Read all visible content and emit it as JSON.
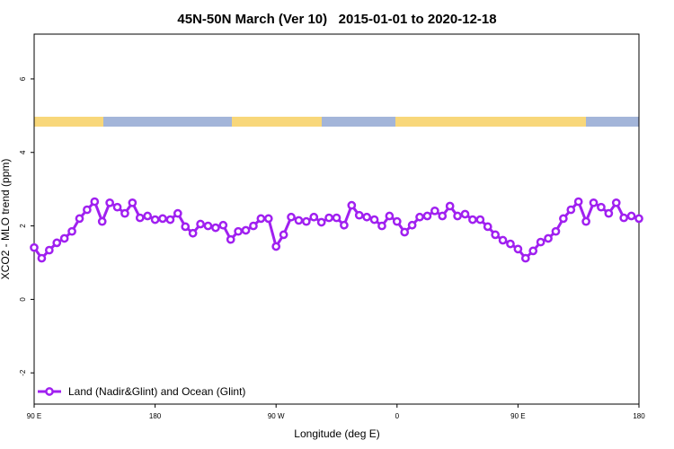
{
  "chart_data": {
    "type": "line",
    "title": "45N-50N March (Ver 10)   2015-01-01 to 2020-12-18",
    "xlabel": "Longitude (deg E)",
    "ylabel": "XCO2 - MLO trend (ppm)",
    "x": [
      90,
      95.625,
      101.25,
      106.875,
      112.5,
      118.125,
      123.75,
      129.375,
      135,
      140.625,
      146.25,
      151.875,
      157.5,
      163.125,
      168.75,
      174.375,
      180,
      185.625,
      191.25,
      196.875,
      202.5,
      208.125,
      213.75,
      219.375,
      225,
      230.625,
      236.25,
      241.875,
      247.5,
      253.125,
      258.75,
      264.375,
      270,
      275.625,
      281.25,
      286.875,
      292.5,
      298.125,
      303.75,
      309.375,
      315,
      320.625,
      326.25,
      331.875,
      337.5,
      343.125,
      348.75,
      354.375,
      360,
      365.625,
      371.25,
      376.875,
      382.5,
      388.125,
      393.75,
      399.375,
      405,
      410.625,
      416.25,
      421.875,
      427.5,
      433.125,
      438.75,
      444.375,
      450,
      455.625,
      461.25,
      466.875,
      472.5,
      478.125,
      483.75,
      489.375,
      495,
      500.625,
      506.25,
      511.875,
      517.5,
      523.125,
      528.75,
      534.375,
      540
    ],
    "series": [
      {
        "name": "Land (Nadir&Glint) and Ocean (Glint)",
        "color": "#a020f0",
        "values": [
          1.41,
          1.12,
          1.34,
          1.54,
          1.66,
          1.85,
          2.2,
          2.44,
          2.66,
          2.12,
          2.63,
          2.51,
          2.34,
          2.63,
          2.22,
          2.27,
          2.17,
          2.2,
          2.17,
          2.34,
          1.98,
          1.8,
          2.05,
          2.0,
          1.95,
          2.02,
          1.63,
          1.85,
          1.88,
          2.0,
          2.2,
          2.2,
          1.44,
          1.76,
          2.24,
          2.15,
          2.12,
          2.24,
          2.1,
          2.22,
          2.22,
          2.02,
          2.56,
          2.29,
          2.24,
          2.17,
          2.0,
          2.27,
          2.12,
          1.83,
          2.02,
          2.24,
          2.27,
          2.41,
          2.27,
          2.54,
          2.27,
          2.32,
          2.17,
          2.17,
          1.98,
          1.76,
          1.61,
          1.51,
          1.37,
          1.12,
          1.32,
          1.56,
          1.66,
          1.85,
          2.2,
          2.44,
          2.66,
          2.12,
          2.63,
          2.51,
          2.34,
          2.63,
          2.22,
          2.27,
          2.2
        ]
      }
    ],
    "xlim": [
      90,
      540
    ],
    "xticks": [
      {
        "value": 90,
        "label": "90 E"
      },
      180,
      {
        "value": 270,
        "label": "90 W"
      },
      {
        "value": 360,
        "label": "0"
      },
      {
        "value": 450,
        "label": "90 E"
      },
      {
        "value": 540,
        "label": "180"
      }
    ],
    "ylim": [
      -2.85,
      7.22
    ],
    "yticks": [
      -2,
      0,
      2,
      4,
      6
    ],
    "legend": "bottom-left"
  }
}
